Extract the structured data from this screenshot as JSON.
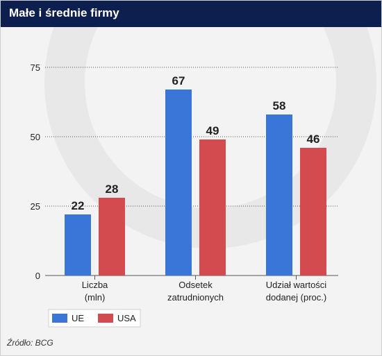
{
  "header": {
    "title": "Małe i średnie firmy"
  },
  "footer": {
    "source": "Źródło: BCG"
  },
  "colors": {
    "header_bg": "#0d1f4f",
    "UE": "#3a75d8",
    "USA": "#d44b4f",
    "background": "#f3f3f3"
  },
  "chart_data": {
    "type": "bar",
    "title": "Małe i średnie firmy",
    "categories": [
      [
        "Liczba",
        "(mln)"
      ],
      [
        "Odsetek",
        "zatrudnionych"
      ],
      [
        "Udział wartości",
        "dodanej (proc.)"
      ]
    ],
    "series": [
      {
        "name": "UE",
        "values": [
          22,
          67,
          58
        ]
      },
      {
        "name": "USA",
        "values": [
          28,
          49,
          46
        ]
      }
    ],
    "ylim": [
      0,
      75
    ],
    "yticks": [
      0,
      25,
      50,
      75
    ],
    "grid": true,
    "legend": "bottom-left"
  }
}
